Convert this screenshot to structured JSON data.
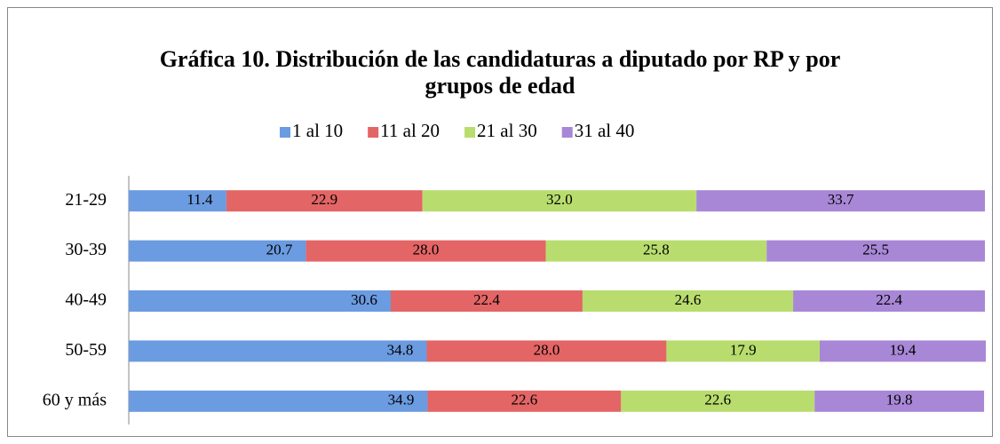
{
  "chart_data": {
    "type": "stacked-bar-horizontal",
    "title": "Gráfica 10. Distribución de las candidaturas a diputado por RP y por grupos de edad",
    "categories": [
      "21-29",
      "30-39",
      "40-49",
      "50-59",
      "60 y más"
    ],
    "series": [
      {
        "name": "1 al 10",
        "color": "#6b9be0",
        "values": [
          11.4,
          20.7,
          30.6,
          34.8,
          34.9
        ],
        "value_labels": [
          "11.4",
          "20.7",
          "30.6",
          "34.8",
          "34.9"
        ]
      },
      {
        "name": "11 al 20",
        "color": "#e46565",
        "values": [
          22.9,
          28.0,
          22.4,
          28.0,
          22.6
        ],
        "value_labels": [
          "22.9",
          "28.0",
          "22.4",
          "28.0",
          "22.6"
        ]
      },
      {
        "name": "21 al 30",
        "color": "#b8dd6e",
        "values": [
          32.0,
          25.8,
          24.6,
          17.9,
          22.6
        ],
        "value_labels": [
          "32.0",
          "25.8",
          "24.6",
          "17.9",
          "22.6"
        ]
      },
      {
        "name": "31 al 40",
        "color": "#a887d6",
        "values": [
          33.7,
          25.5,
          22.4,
          19.4,
          19.8
        ],
        "value_labels": [
          "33.7",
          "25.5",
          "22.4",
          "19.4",
          "19.8"
        ]
      }
    ],
    "legend": "top"
  }
}
